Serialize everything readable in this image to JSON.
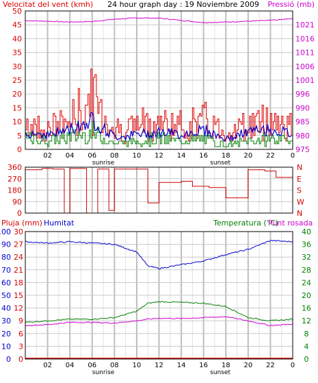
{
  "colors": {
    "background": "#ffffff",
    "plot_bg": "#ffffff",
    "grid": "#c8c8c8",
    "frame": "#000000",
    "sunband": "#e6e6e6",
    "wind": "#dd0000",
    "gust": "#dd0000",
    "wind_avg": "#008000",
    "wind_line": "#0000cc",
    "pressure": "#cc00cc",
    "direction": "#cc0000",
    "rain": "#dd0000",
    "humidity": "#0000cc",
    "temperature": "#008000",
    "dewpoint": "#cc00cc"
  },
  "x_ticks": [
    "02",
    "04",
    "06",
    "08",
    "10",
    "12",
    "14",
    "16",
    "18",
    "20",
    "22",
    "0"
  ],
  "sunrise_label": "sunrise",
  "sunset_label": "sunset",
  "chart_data": [
    {
      "type": "line",
      "title": "24 hour graph day : 19 Noviembre 2009",
      "ylabel_left": "Velocitat del vent (kmh)",
      "ylabel_right": "Pressió (mb)",
      "ylim_left": [
        0,
        50
      ],
      "ylim_right": [
        975,
        1025
      ],
      "y_ticks_left": [
        "0",
        "5",
        "10",
        "15",
        "20",
        "25",
        "30",
        "35",
        "40",
        "45",
        "50"
      ],
      "y_ticks_right": [
        "975",
        "980",
        "985",
        "990",
        "996",
        "1001",
        "1006",
        "1011",
        "1016",
        "1021"
      ],
      "x": [
        0,
        2,
        4,
        6,
        8,
        10,
        12,
        14,
        16,
        18,
        20,
        22,
        24
      ],
      "series": [
        {
          "key": "pressure",
          "values": [
            1021.5,
            1021.3,
            1021.0,
            1021.2,
            1022.0,
            1022.5,
            1022.4,
            1021.6,
            1020.8,
            1021.0,
            1021.3,
            1021.6,
            1022.2
          ]
        },
        {
          "key": "gust",
          "values": [
            13,
            11,
            15,
            27,
            10,
            13,
            14,
            12,
            15,
            9,
            13,
            16,
            12
          ]
        },
        {
          "key": "wind_line",
          "values": [
            7,
            6,
            8,
            12,
            5,
            6,
            7,
            6,
            8,
            4,
            7,
            8,
            6
          ]
        },
        {
          "key": "wind_avg",
          "values": [
            5,
            4,
            6,
            8,
            3,
            4,
            5,
            4,
            5,
            2,
            4,
            5,
            4
          ]
        }
      ]
    },
    {
      "type": "line",
      "ylabel_left": "",
      "ylim_left": [
        0,
        360
      ],
      "y_ticks_left": [
        "0",
        "90",
        "180",
        "270",
        "360"
      ],
      "y_ticks_right": [
        "N",
        "W",
        "S",
        "E",
        "N"
      ],
      "series": [
        {
          "key": "direction",
          "points": [
            [
              0,
              340
            ],
            [
              1.5,
              350
            ],
            [
              2.5,
              345
            ],
            [
              3.5,
              0
            ],
            [
              4,
              350
            ],
            [
              5,
              350
            ],
            [
              5.5,
              0
            ],
            [
              6.5,
              345
            ],
            [
              7.5,
              20
            ],
            [
              8,
              345
            ],
            [
              10,
              345
            ],
            [
              11,
              80
            ],
            [
              12,
              240
            ],
            [
              14,
              250
            ],
            [
              15,
              210
            ],
            [
              16.5,
              200
            ],
            [
              18,
              120
            ],
            [
              19.5,
              120
            ],
            [
              20,
              340
            ],
            [
              21.5,
              330
            ],
            [
              22.5,
              280
            ],
            [
              24,
              345
            ]
          ]
        }
      ]
    },
    {
      "type": "line",
      "ylabel_left": "Pluja (mm)",
      "ylabel_left2": "Humitat",
      "ylabel_right": "Temperatura (°C)",
      "ylabel_right2": "Punt rosada",
      "ylim_left": [
        0,
        100
      ],
      "ylim_right": [
        0,
        40
      ],
      "y_ticks_left_rain": [
        "0",
        "3",
        "6",
        "9",
        "12",
        "15",
        "18",
        "21",
        "24",
        "27",
        "30"
      ],
      "y_ticks_left_hum": [
        "0",
        "10",
        "20",
        "30",
        "40",
        "50",
        "60",
        "70",
        "80",
        "90",
        "100"
      ],
      "y_ticks_right": [
        "0",
        "4",
        "8",
        "12",
        "16",
        "20",
        "24",
        "28",
        "32",
        "36",
        "40"
      ],
      "x": [
        0,
        2,
        4,
        6,
        8,
        10,
        11,
        12,
        14,
        16,
        18,
        20,
        22,
        24
      ],
      "series": [
        {
          "key": "humidity",
          "values": [
            92,
            91,
            92,
            91,
            90,
            84,
            73,
            71,
            74,
            77,
            82,
            86,
            93,
            92
          ]
        },
        {
          "key": "temperature",
          "values": [
            11.5,
            12,
            12.5,
            12.5,
            13,
            15,
            17.5,
            18,
            17.8,
            17.5,
            16.5,
            13,
            12,
            12.5
          ]
        },
        {
          "key": "dewpoint",
          "values": [
            10.5,
            10.8,
            11.5,
            11.5,
            11.3,
            12,
            12.5,
            12.8,
            12.7,
            13,
            13.3,
            12,
            10.5,
            11
          ]
        },
        {
          "key": "rain",
          "values": [
            0,
            0,
            0,
            0,
            0,
            0,
            0,
            0,
            0,
            0,
            0,
            0,
            0,
            0
          ]
        }
      ]
    }
  ]
}
